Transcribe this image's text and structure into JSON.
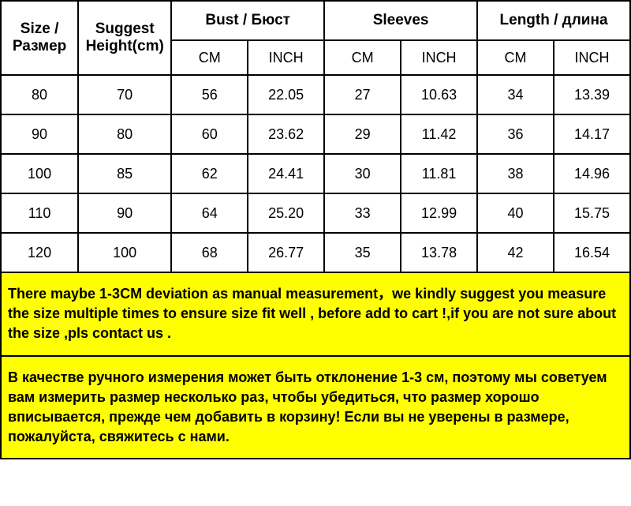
{
  "headers": {
    "size": "Size / Размер",
    "height": "Suggest Height(cm)",
    "bust": "Bust / Бюст",
    "sleeves": "Sleeves",
    "length": "Length / длина",
    "cm": "CM",
    "inch": "INCH"
  },
  "rows": [
    {
      "size": "80",
      "height": "70",
      "bust_cm": "56",
      "bust_in": "22.05",
      "sleeves_cm": "27",
      "sleeves_in": "10.63",
      "length_cm": "34",
      "length_in": "13.39"
    },
    {
      "size": "90",
      "height": "80",
      "bust_cm": "60",
      "bust_in": "23.62",
      "sleeves_cm": "29",
      "sleeves_in": "11.42",
      "length_cm": "36",
      "length_in": "14.17"
    },
    {
      "size": "100",
      "height": "85",
      "bust_cm": "62",
      "bust_in": "24.41",
      "sleeves_cm": "30",
      "sleeves_in": "11.81",
      "length_cm": "38",
      "length_in": "14.96"
    },
    {
      "size": "110",
      "height": "90",
      "bust_cm": "64",
      "bust_in": "25.20",
      "sleeves_cm": "33",
      "sleeves_in": "12.99",
      "length_cm": "40",
      "length_in": "15.75"
    },
    {
      "size": "120",
      "height": "100",
      "bust_cm": "68",
      "bust_in": "26.77",
      "sleeves_cm": "35",
      "sleeves_in": "13.78",
      "length_cm": "42",
      "length_in": "16.54"
    }
  ],
  "notes": {
    "en": "There maybe 1-3CM deviation as manual measurement，we kindly suggest you measure the size multiple times to ensure size fit well , before add to cart !,if you are not sure about the size ,pls contact us .",
    "ru": "В качестве ручного измерения может быть отклонение 1-3 см, поэтому мы советуем вам измерить размер несколько раз, чтобы убедиться, что размер хорошо вписывается, прежде чем добавить в корзину! Если вы не уверены в размере, пожалуйста, свяжитесь с нами."
  },
  "style": {
    "note_bg": "#ffff00",
    "border_color": "#000000",
    "header_fontsize": 19,
    "data_fontsize": 18,
    "note_fontsize": 18
  }
}
